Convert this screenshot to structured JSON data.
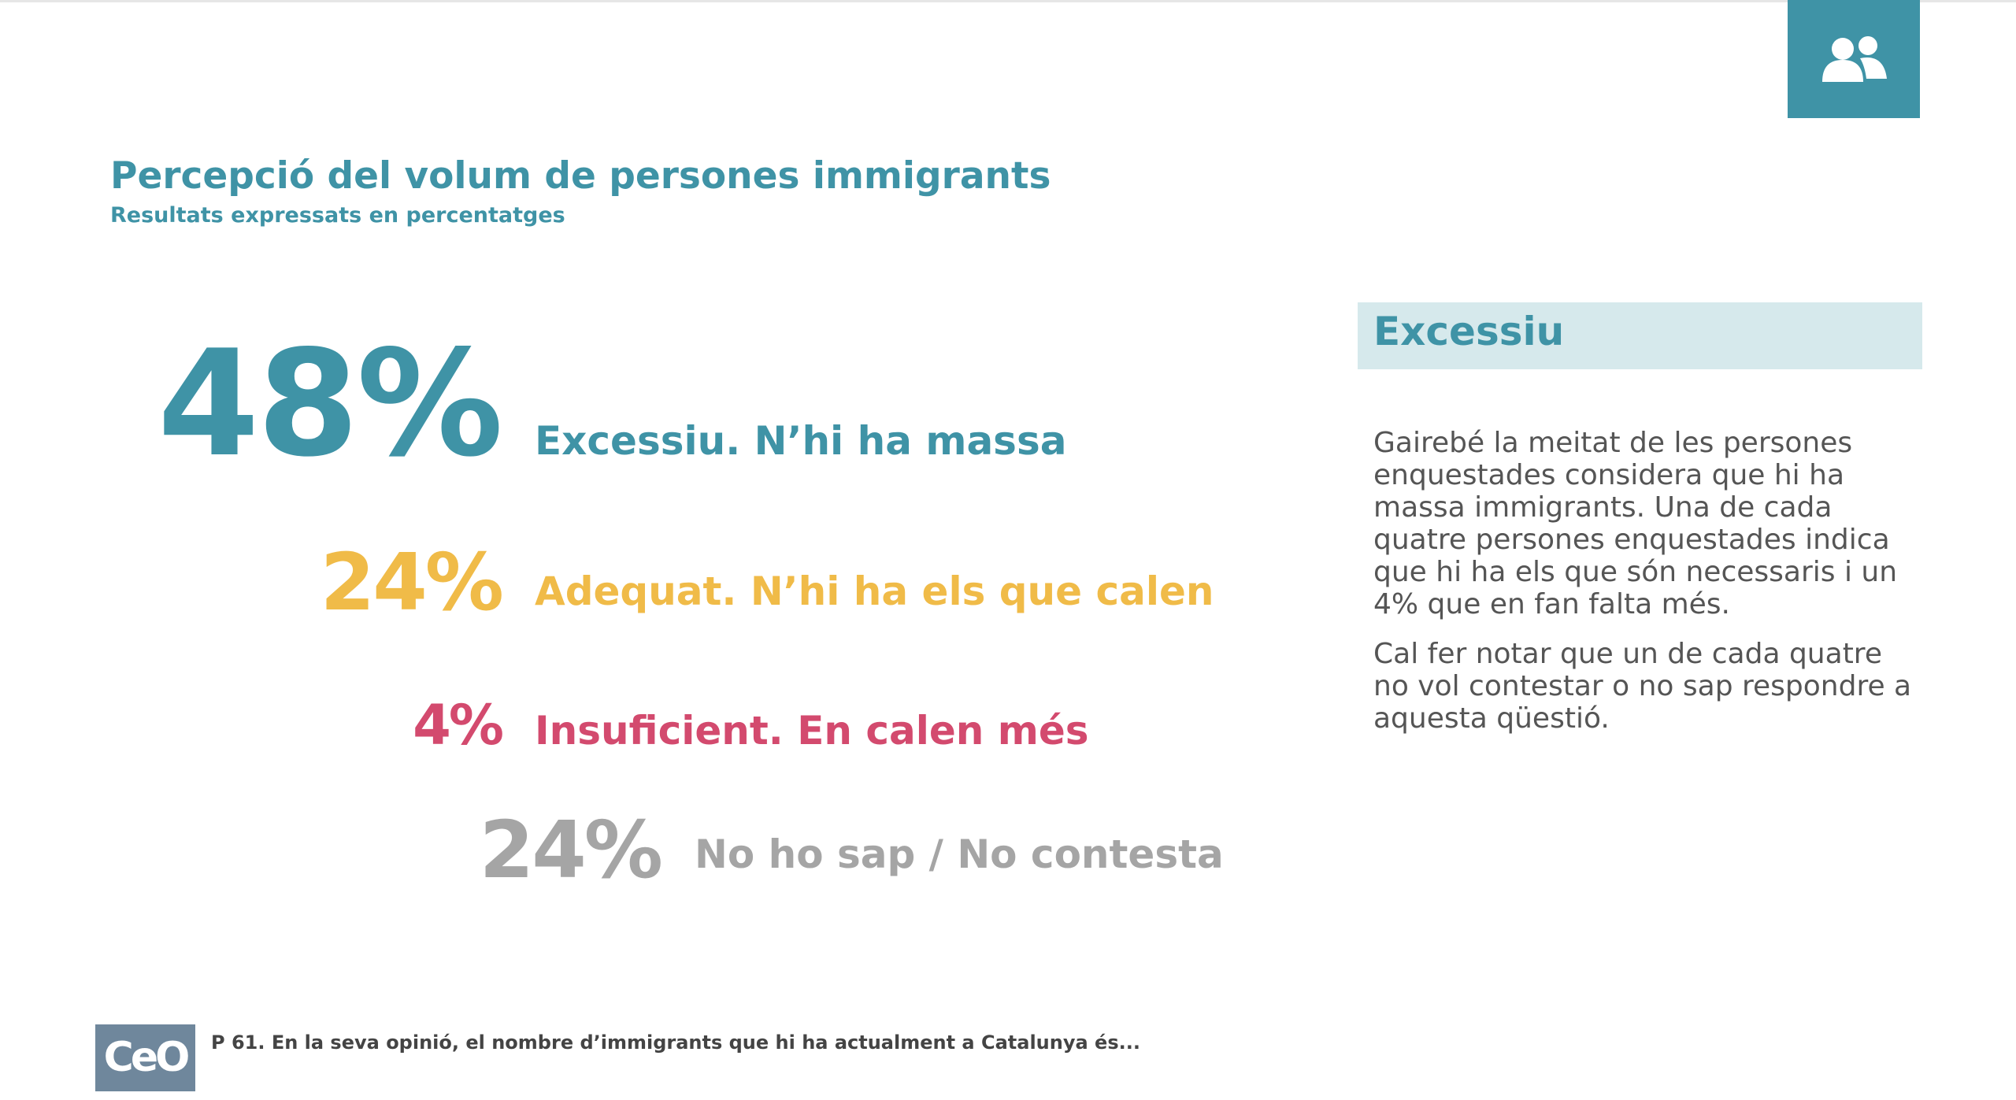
{
  "header": {
    "title": "Percepció del volum de persones immigrants",
    "subtitle": "Resultats expressats en percentatges"
  },
  "items": [
    {
      "value": "48%",
      "label": "Excessiu. N’hi ha massa"
    },
    {
      "value": "24%",
      "label": "Adequat. N’hi ha els que calen"
    },
    {
      "value": "4%",
      "label": "Insuficient. En calen més"
    },
    {
      "value": "24%",
      "label": "No ho sap / No contesta"
    }
  ],
  "panel": {
    "heading": "Excessiu",
    "paragraphs": [
      "Gairebé la meitat de les persones enquestades considera que hi ha massa immigrants. Una de cada quatre persones enquestades indica que hi ha els que són necessaris i un 4% que en fan falta més.",
      "Cal fer notar que un de cada quatre no vol contestar o no sap respondre a aquesta qüestió."
    ]
  },
  "footer": {
    "logo": "CeO",
    "note": "P 61. En la seva opinió, el nombre d’immigrants que hi ha actualment a Catalunya és..."
  }
}
